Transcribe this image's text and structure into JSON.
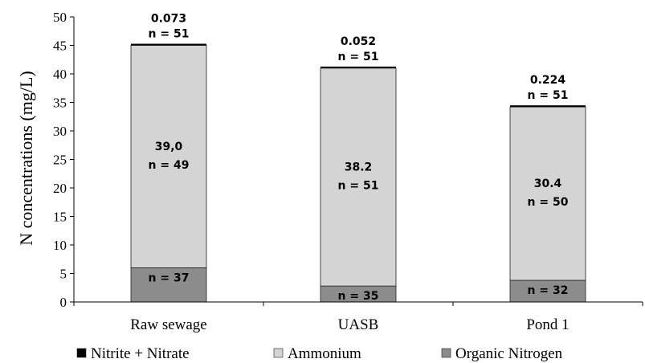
{
  "chart_data": {
    "type": "bar",
    "stacked": true,
    "title": "",
    "xlabel": "",
    "ylabel": "N concentrations  (mg/L)",
    "ylim": [
      0,
      50
    ],
    "yticks": [
      0,
      5,
      10,
      15,
      20,
      25,
      30,
      35,
      40,
      45,
      50
    ],
    "grid": false,
    "legend_position": "bottom",
    "categories": [
      "Raw sewage",
      "UASB",
      "Pond 1"
    ],
    "series": [
      {
        "name": "Organic Nitrogen",
        "color": "#8c8c8c",
        "values": [
          6.0,
          2.8,
          3.8
        ],
        "labels": [
          "6.0",
          "2.8",
          "3.8"
        ],
        "n_labels": [
          "n = 37",
          "n = 35",
          "n = 32"
        ]
      },
      {
        "name": "Ammonium",
        "color": "#d4d4d4",
        "values": [
          39.0,
          38.2,
          30.4
        ],
        "labels": [
          "39,0",
          "38.2",
          "30.4"
        ],
        "n_labels": [
          "n = 49",
          "n = 51",
          "n = 50"
        ]
      },
      {
        "name": "Nitrite + Nitrate",
        "color": "#000000",
        "values": [
          0.073,
          0.052,
          0.224
        ],
        "labels": [
          "0.073",
          "0.052",
          "0.224"
        ],
        "n_labels": [
          "n = 51",
          "n = 51",
          "n = 51"
        ]
      }
    ],
    "legend_order": [
      "Nitrite + Nitrate",
      "Ammonium",
      "Organic Nitrogen"
    ]
  }
}
